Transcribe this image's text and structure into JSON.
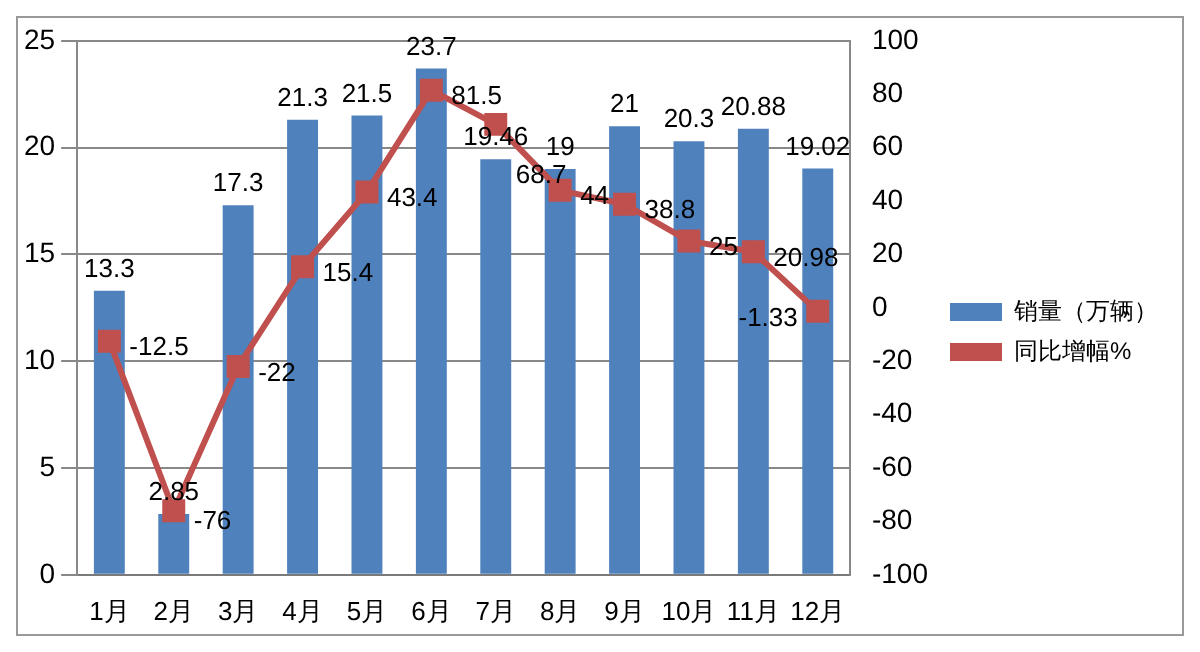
{
  "chart_data": {
    "type": "bar",
    "categories": [
      "1月",
      "2月",
      "3月",
      "4月",
      "5月",
      "6月",
      "7月",
      "8月",
      "9月",
      "10月",
      "11月",
      "12月"
    ],
    "series": [
      {
        "name": "销量（万辆）",
        "color": "#4f81bd",
        "values": [
          13.3,
          2.85,
          17.3,
          21.3,
          21.5,
          23.7,
          19.46,
          19,
          21,
          20.3,
          20.88,
          19.02
        ]
      },
      {
        "name": "同比增幅%",
        "type": "line",
        "axis": "y2",
        "color": "#c0504d",
        "marker": "square",
        "values": [
          -12.5,
          -76,
          -22,
          15.4,
          43.4,
          81.5,
          68.7,
          44,
          38.8,
          25,
          20.98,
          -1.33
        ]
      }
    ],
    "ylim": [
      0,
      25
    ],
    "yticks": [
      0,
      5,
      10,
      15,
      20,
      25
    ],
    "y2lim": [
      -100,
      100
    ],
    "y2ticks": [
      -100,
      -80,
      -60,
      -40,
      -20,
      0,
      20,
      40,
      60,
      80,
      100
    ],
    "grid": "y",
    "legend": "right",
    "data_labels": true
  }
}
